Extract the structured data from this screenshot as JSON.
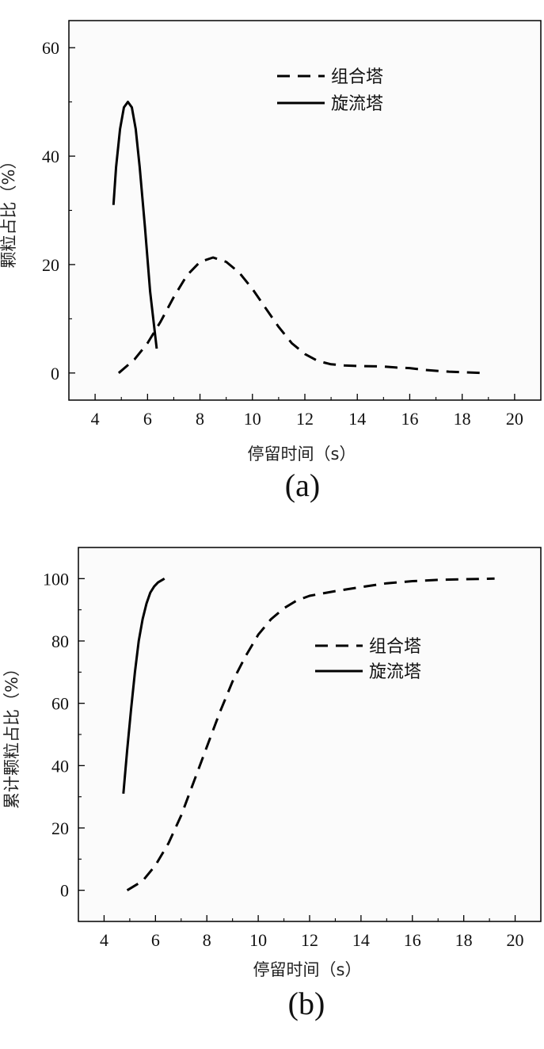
{
  "chart_data": [
    {
      "type": "line",
      "panel_label": "(a)",
      "xlabel": "停留时间（s）",
      "ylabel": "颗粒占比（%）",
      "xlim": [
        3,
        21
      ],
      "ylim": [
        -5,
        65
      ],
      "xticks": [
        4,
        6,
        8,
        10,
        12,
        14,
        16,
        18,
        20
      ],
      "yticks": [
        0,
        20,
        40,
        60
      ],
      "legend_position": "top-right",
      "series": [
        {
          "name": "组合塔",
          "style": "dashed",
          "color": "#000000",
          "x": [
            4.9,
            5.5,
            6.0,
            6.5,
            7.0,
            7.5,
            8.0,
            8.5,
            9.0,
            9.5,
            10.0,
            10.5,
            11.0,
            11.5,
            12.0,
            12.5,
            13.0,
            13.5,
            14.0,
            15.0,
            15.5,
            16.0,
            16.5,
            17.0,
            17.5,
            18.0,
            18.8
          ],
          "y": [
            0,
            2.5,
            5.5,
            9.5,
            14,
            18,
            20.5,
            21.3,
            20.5,
            18.5,
            15.5,
            12,
            8.5,
            5.5,
            3.5,
            2.2,
            1.6,
            1.4,
            1.3,
            1.2,
            1.0,
            0.9,
            0.6,
            0.4,
            0.25,
            0.15,
            0
          ]
        },
        {
          "name": "旋流塔",
          "style": "solid",
          "color": "#000000",
          "x": [
            4.7,
            4.8,
            4.95,
            5.1,
            5.25,
            5.4,
            5.55,
            5.7,
            5.9,
            6.1,
            6.35
          ],
          "y": [
            31,
            38,
            45,
            49,
            50,
            49,
            45,
            38,
            27,
            15,
            4.5
          ]
        }
      ]
    },
    {
      "type": "line",
      "panel_label": "(b)",
      "xlabel": "停留时间（s）",
      "ylabel": "累计颗粒占比（%）",
      "xlim": [
        3,
        21
      ],
      "ylim": [
        -10,
        110
      ],
      "xticks": [
        4,
        6,
        8,
        10,
        12,
        14,
        16,
        18,
        20
      ],
      "yticks": [
        0,
        20,
        40,
        60,
        80,
        100
      ],
      "legend_position": "right",
      "series": [
        {
          "name": "组合塔",
          "style": "dashed",
          "color": "#000000",
          "x": [
            4.9,
            5.5,
            6.0,
            6.5,
            7.0,
            7.5,
            8.0,
            8.5,
            9.0,
            9.5,
            10.0,
            10.5,
            11.0,
            11.5,
            12.0,
            13.0,
            14.0,
            15.0,
            16.0,
            17.0,
            18.0,
            19.2
          ],
          "y": [
            0,
            3,
            8,
            15,
            24,
            35,
            46,
            57,
            67,
            75,
            82,
            87,
            90.5,
            93,
            94.5,
            96,
            97.3,
            98.5,
            99.2,
            99.6,
            99.8,
            100
          ]
        },
        {
          "name": "旋流塔",
          "style": "solid",
          "color": "#000000",
          "x": [
            4.75,
            4.9,
            5.05,
            5.2,
            5.35,
            5.5,
            5.65,
            5.8,
            5.95,
            6.1,
            6.35
          ],
          "y": [
            31,
            45,
            58,
            70,
            80,
            87,
            92,
            95.5,
            97.5,
            98.8,
            100
          ]
        }
      ]
    }
  ]
}
